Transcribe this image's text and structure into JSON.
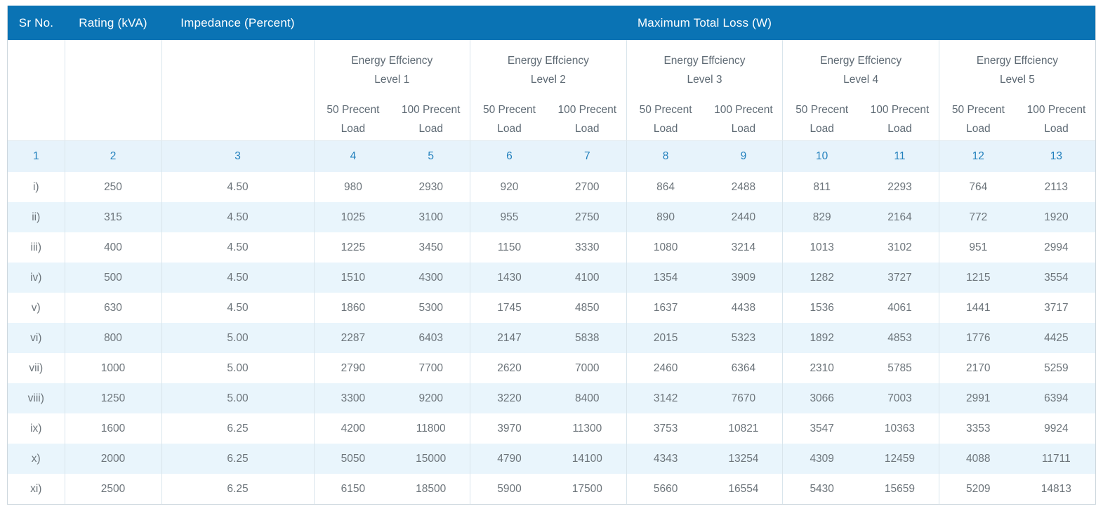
{
  "chart_data": {
    "type": "table",
    "title": "Maximum Total Loss (W)",
    "header": {
      "sr_no": "Sr No.",
      "rating": "Rating (kVA)",
      "impedance": "Impedance (Percent)",
      "max_total_loss": "Maximum Total Loss (W)"
    },
    "levels": [
      {
        "line1": "Energy Effciency",
        "line2": "Level 1"
      },
      {
        "line1": "Energy Effciency",
        "line2": "Level 2"
      },
      {
        "line1": "Energy Effciency",
        "line2": "Level 3"
      },
      {
        "line1": "Energy Effciency",
        "line2": "Level 4"
      },
      {
        "line1": "Energy Effciency",
        "line2": "Level 5"
      }
    ],
    "load_labels": [
      "50 Precent Load",
      "100 Precent Load"
    ],
    "column_numbers": [
      "1",
      "2",
      "3",
      "4",
      "5",
      "6",
      "7",
      "8",
      "9",
      "10",
      "11",
      "12",
      "13"
    ],
    "rows": [
      {
        "sr": "i)",
        "rating": "250",
        "impedance": "4.50",
        "values": [
          "980",
          "2930",
          "920",
          "2700",
          "864",
          "2488",
          "811",
          "2293",
          "764",
          "2113"
        ]
      },
      {
        "sr": "ii)",
        "rating": "315",
        "impedance": "4.50",
        "values": [
          "1025",
          "3100",
          "955",
          "2750",
          "890",
          "2440",
          "829",
          "2164",
          "772",
          "1920"
        ]
      },
      {
        "sr": "iii)",
        "rating": "400",
        "impedance": "4.50",
        "values": [
          "1225",
          "3450",
          "1150",
          "3330",
          "1080",
          "3214",
          "1013",
          "3102",
          "951",
          "2994"
        ]
      },
      {
        "sr": "iv)",
        "rating": "500",
        "impedance": "4.50",
        "values": [
          "1510",
          "4300",
          "1430",
          "4100",
          "1354",
          "3909",
          "1282",
          "3727",
          "1215",
          "3554"
        ]
      },
      {
        "sr": "v)",
        "rating": "630",
        "impedance": "4.50",
        "values": [
          "1860",
          "5300",
          "1745",
          "4850",
          "1637",
          "4438",
          "1536",
          "4061",
          "1441",
          "3717"
        ]
      },
      {
        "sr": "vi)",
        "rating": "800",
        "impedance": "5.00",
        "values": [
          "2287",
          "6403",
          "2147",
          "5838",
          "2015",
          "5323",
          "1892",
          "4853",
          "1776",
          "4425"
        ]
      },
      {
        "sr": "vii)",
        "rating": "1000",
        "impedance": "5.00",
        "values": [
          "2790",
          "7700",
          "2620",
          "7000",
          "2460",
          "6364",
          "2310",
          "5785",
          "2170",
          "5259"
        ]
      },
      {
        "sr": "viii)",
        "rating": "1250",
        "impedance": "5.00",
        "values": [
          "3300",
          "9200",
          "3220",
          "8400",
          "3142",
          "7670",
          "3066",
          "7003",
          "2991",
          "6394"
        ]
      },
      {
        "sr": "ix)",
        "rating": "1600",
        "impedance": "6.25",
        "values": [
          "4200",
          "11800",
          "3970",
          "11300",
          "3753",
          "10821",
          "3547",
          "10363",
          "3353",
          "9924"
        ]
      },
      {
        "sr": "x)",
        "rating": "2000",
        "impedance": "6.25",
        "values": [
          "5050",
          "15000",
          "4790",
          "14100",
          "4343",
          "13254",
          "4309",
          "12459",
          "4088",
          "11711"
        ]
      },
      {
        "sr": "xi)",
        "rating": "2500",
        "impedance": "6.25",
        "values": [
          "6150",
          "18500",
          "5900",
          "17500",
          "5660",
          "16554",
          "5430",
          "15659",
          "5209",
          "14813"
        ]
      }
    ]
  },
  "colors": {
    "header_bg": "#0A73B4",
    "header_text": "#FFFFFF",
    "subheader_text": "#5E6A74",
    "column_number_text": "#2280BD",
    "body_text": "#6D757B",
    "number_row_bg": "#E7F3FB",
    "row_alt_bg": "#E9F5FC",
    "cell_border": "#D9E5EC",
    "frame_border": "#CDD7DE"
  }
}
